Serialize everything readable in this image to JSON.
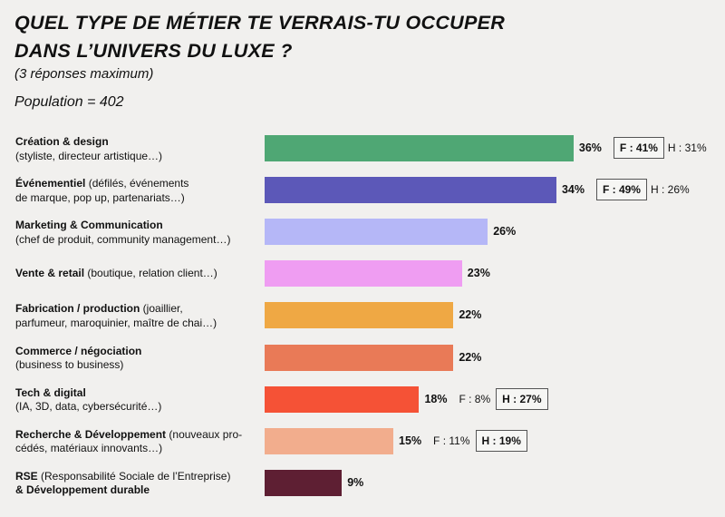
{
  "chart_data": {
    "type": "bar",
    "orientation": "horizontal",
    "title_line1": "QUEL TYPE DE MÉTIER TE VERRAIS-TU OCCUPER",
    "title_line2": "DANS L’UNIVERS DU LUXE ?",
    "subtitle": "(3 réponses maximum)",
    "population": "Population = 402",
    "unit": "%",
    "categories": [
      {
        "bold": "Création & design",
        "line1_rest": "",
        "line2": " (styliste, directeur artistique…)",
        "value": 36,
        "value_label": "36%",
        "color": "#4fa774",
        "gender": [
          {
            "text": "F : 41%",
            "boxed": true
          },
          {
            "text": "H : 31%",
            "boxed": false
          }
        ]
      },
      {
        "bold": "Événementiel",
        "line1_rest": " (défilés, événements",
        "line2": "de marque, pop up, partenariats…)",
        "value": 34,
        "value_label": "34%",
        "color": "#5c58b8",
        "gender": [
          {
            "text": "F : 49%",
            "boxed": true
          },
          {
            "text": "H : 26%",
            "boxed": false
          }
        ]
      },
      {
        "bold": "Marketing & Communication",
        "line1_rest": "",
        "line2": "(chef de produit, community management…)",
        "value": 26,
        "value_label": "26%",
        "color": "#b5b7f7",
        "gender": []
      },
      {
        "bold": "Vente & retail",
        "line1_rest": " (boutique, relation client…)",
        "line2": "",
        "value": 23,
        "value_label": "23%",
        "color": "#ef9df2",
        "gender": []
      },
      {
        "bold": "Fabrication / production",
        "line1_rest": " (joaillier,",
        "line2": "parfumeur, maroquinier, maître de chai…)",
        "value": 22,
        "value_label": "22%",
        "color": "#efa844",
        "gender": []
      },
      {
        "bold": "Commerce / négociation",
        "line1_rest": "",
        "line2": "(business to business)",
        "value": 22,
        "value_label": "22%",
        "color": "#e97a57",
        "gender": []
      },
      {
        "bold": "Tech & digital",
        "line1_rest": "",
        "line2": "(IA, 3D, data, cybersécurité…)",
        "value": 18,
        "value_label": "18%",
        "color": "#f55236",
        "gender": [
          {
            "text": "F : 8%",
            "boxed": false
          },
          {
            "text": "H : 27%",
            "boxed": true
          }
        ]
      },
      {
        "bold": "Recherche & Développement",
        "line1_rest": " (nouveaux pro-",
        "line2": "cédés, matériaux innovants…)",
        "value": 15,
        "value_label": "15%",
        "color": "#f2ad8d",
        "gender": [
          {
            "text": "F : 11%",
            "boxed": false
          },
          {
            "text": "H : 19%",
            "boxed": true
          }
        ]
      },
      {
        "bold": "RSE",
        "line1_rest": " (Responsabilité Sociale de l’Entreprise)",
        "line2_bold": "& Développement durable",
        "line2": "",
        "value": 9,
        "value_label": "9%",
        "color": "#5e1f33",
        "gender": []
      }
    ]
  }
}
